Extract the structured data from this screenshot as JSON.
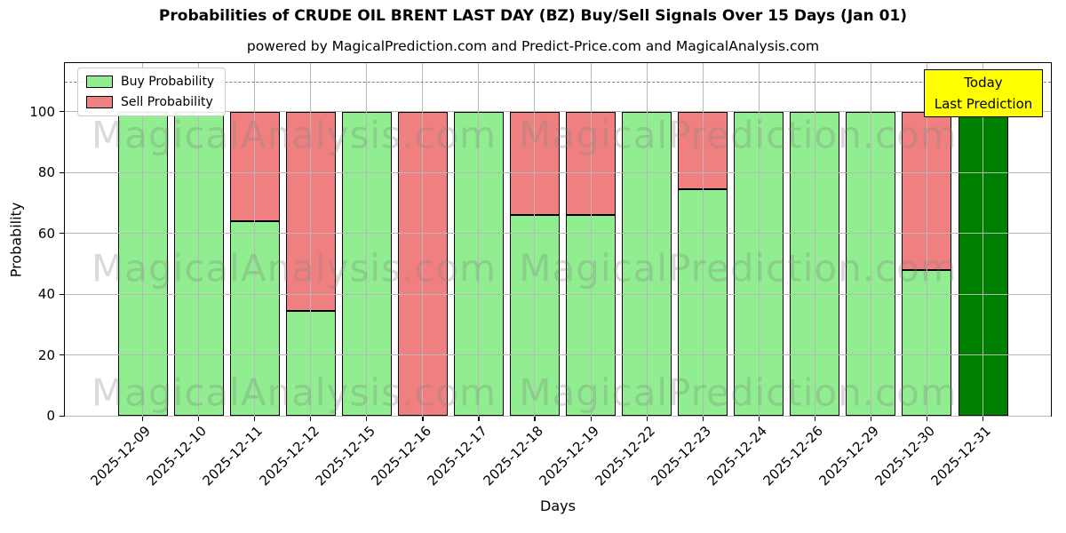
{
  "title": "Probabilities of CRUDE OIL BRENT LAST DAY (BZ) Buy/Sell Signals Over 15 Days (Jan 01)",
  "subtitle": "powered by MagicalPrediction.com and Predict-Price.com and MagicalAnalysis.com",
  "legend": {
    "buy_label": "Buy Probability",
    "sell_label": "Sell Probability"
  },
  "annotation": {
    "line1": "Today",
    "line2": "Last Prediction",
    "bg_color": "#ffff00"
  },
  "watermarks": {
    "left": "MagicalAnalysis.com",
    "right": "MagicalPrediction.com"
  },
  "colors": {
    "buy": "#90ee90",
    "sell": "#f08080",
    "last_prediction_bar": "#008000",
    "grid": "#b8b8b8",
    "dashed": "#7f7f7f"
  },
  "chart_data": {
    "type": "bar",
    "stacked": true,
    "title": "Probabilities of CRUDE OIL BRENT LAST DAY (BZ) Buy/Sell Signals Over 15 Days (Jan 01)",
    "xlabel": "Days",
    "ylabel": "Probability",
    "ylim": [
      0,
      116
    ],
    "yticks": [
      0,
      20,
      40,
      60,
      80,
      100
    ],
    "grid": true,
    "legend_position": "upper left",
    "dashed_guide_y": 110,
    "categories": [
      "2025-12-09",
      "2025-12-10",
      "2025-12-11",
      "2025-12-12",
      "2025-12-15",
      "2025-12-16",
      "2025-12-17",
      "2025-12-18",
      "2025-12-19",
      "2025-12-22",
      "2025-12-23",
      "2025-12-24",
      "2025-12-26",
      "2025-12-29",
      "2025-12-30",
      "2025-12-31"
    ],
    "series": [
      {
        "name": "Buy Probability",
        "color": "#90ee90",
        "values": [
          100,
          100,
          64,
          34.5,
          100,
          0,
          100,
          66,
          66,
          100,
          74.5,
          100,
          100,
          100,
          48,
          100
        ]
      },
      {
        "name": "Sell Probability",
        "color": "#f08080",
        "values": [
          0,
          0,
          36,
          65.5,
          0,
          100,
          0,
          34,
          34,
          0,
          25.5,
          0,
          0,
          0,
          52,
          0
        ]
      }
    ],
    "last_bar_index": 15,
    "last_bar_color": "#008000"
  }
}
